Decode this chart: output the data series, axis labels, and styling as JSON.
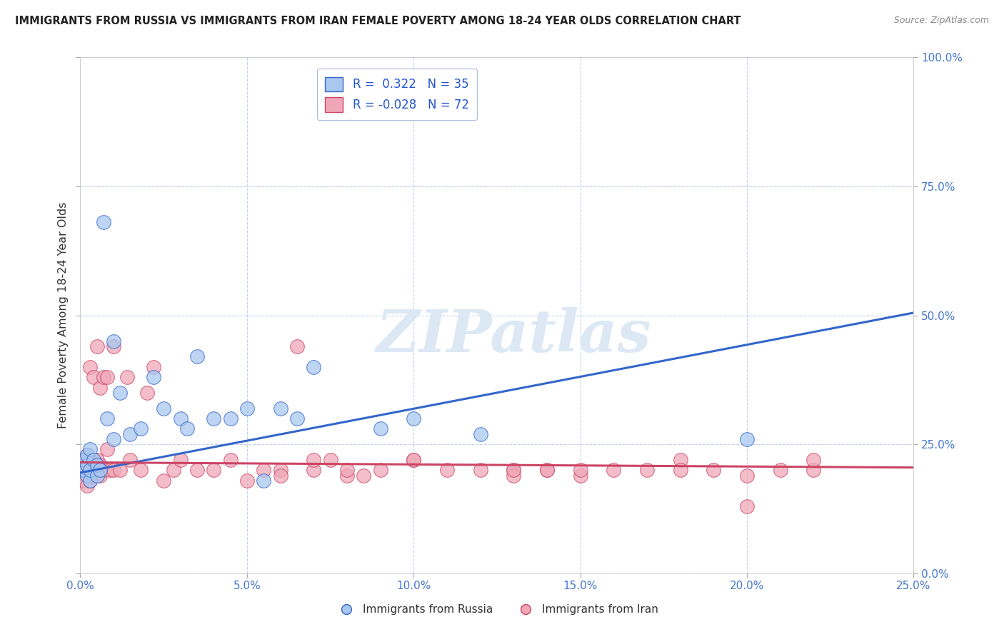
{
  "title": "IMMIGRANTS FROM RUSSIA VS IMMIGRANTS FROM IRAN FEMALE POVERTY AMONG 18-24 YEAR OLDS CORRELATION CHART",
  "source": "Source: ZipAtlas.com",
  "ylabel": "Female Poverty Among 18-24 Year Olds",
  "xlabel": "",
  "xlim": [
    0,
    0.25
  ],
  "ylim": [
    0,
    1.0
  ],
  "xticks": [
    0,
    0.05,
    0.1,
    0.15,
    0.2,
    0.25
  ],
  "yticks": [
    0.0,
    0.25,
    0.5,
    0.75,
    1.0
  ],
  "xtick_labels": [
    "0.0%",
    "5.0%",
    "10.0%",
    "15.0%",
    "20.0%",
    "25.0%"
  ],
  "ytick_labels": [
    "0.0%",
    "25.0%",
    "50.0%",
    "75.0%",
    "100.0%"
  ],
  "russia_color": "#a8c8f0",
  "iran_color": "#f0a8b8",
  "russia_line_color": "#3366cc",
  "iran_line_color": "#cc4466",
  "watermark_color": "#dde8f5",
  "watermark": "ZIPatlas",
  "legend_russia": "Immigrants from Russia",
  "legend_iran": "Immigrants from Iran",
  "R_russia": 0.322,
  "N_russia": 35,
  "R_iran": -0.028,
  "N_iran": 72,
  "russia_x": [
    0.001,
    0.001,
    0.002,
    0.002,
    0.002,
    0.003,
    0.003,
    0.003,
    0.004,
    0.005,
    0.005,
    0.006,
    0.007,
    0.008,
    0.01,
    0.01,
    0.012,
    0.015,
    0.018,
    0.022,
    0.025,
    0.03,
    0.032,
    0.035,
    0.04,
    0.045,
    0.05,
    0.055,
    0.06,
    0.065,
    0.07,
    0.09,
    0.1,
    0.12,
    0.2
  ],
  "russia_y": [
    0.2,
    0.22,
    0.19,
    0.21,
    0.23,
    0.18,
    0.24,
    0.2,
    0.22,
    0.19,
    0.21,
    0.2,
    0.68,
    0.3,
    0.26,
    0.45,
    0.35,
    0.27,
    0.28,
    0.38,
    0.32,
    0.3,
    0.28,
    0.42,
    0.3,
    0.3,
    0.32,
    0.18,
    0.32,
    0.3,
    0.4,
    0.28,
    0.3,
    0.27,
    0.26
  ],
  "iran_x": [
    0.001,
    0.001,
    0.001,
    0.002,
    0.002,
    0.002,
    0.002,
    0.003,
    0.003,
    0.003,
    0.003,
    0.004,
    0.004,
    0.004,
    0.005,
    0.005,
    0.005,
    0.006,
    0.006,
    0.006,
    0.007,
    0.007,
    0.008,
    0.008,
    0.009,
    0.01,
    0.01,
    0.012,
    0.014,
    0.015,
    0.018,
    0.02,
    0.022,
    0.025,
    0.028,
    0.03,
    0.035,
    0.04,
    0.045,
    0.05,
    0.055,
    0.06,
    0.065,
    0.07,
    0.075,
    0.08,
    0.085,
    0.09,
    0.1,
    0.11,
    0.12,
    0.13,
    0.14,
    0.15,
    0.16,
    0.17,
    0.18,
    0.19,
    0.2,
    0.21,
    0.22,
    0.2,
    0.13,
    0.14,
    0.07,
    0.08,
    0.1,
    0.13,
    0.06,
    0.18,
    0.15,
    0.22
  ],
  "iran_y": [
    0.2,
    0.18,
    0.22,
    0.19,
    0.21,
    0.23,
    0.17,
    0.2,
    0.22,
    0.18,
    0.4,
    0.19,
    0.21,
    0.38,
    0.2,
    0.22,
    0.44,
    0.36,
    0.19,
    0.21,
    0.38,
    0.2,
    0.38,
    0.24,
    0.2,
    0.2,
    0.44,
    0.2,
    0.38,
    0.22,
    0.2,
    0.35,
    0.4,
    0.18,
    0.2,
    0.22,
    0.2,
    0.2,
    0.22,
    0.18,
    0.2,
    0.2,
    0.44,
    0.2,
    0.22,
    0.19,
    0.19,
    0.2,
    0.22,
    0.2,
    0.2,
    0.2,
    0.2,
    0.19,
    0.2,
    0.2,
    0.22,
    0.2,
    0.19,
    0.2,
    0.2,
    0.13,
    0.19,
    0.2,
    0.22,
    0.2,
    0.22,
    0.2,
    0.19,
    0.2,
    0.2,
    0.22
  ],
  "russia_trend_x0": 0.0,
  "russia_trend_y0": 0.195,
  "russia_trend_x1": 0.25,
  "russia_trend_y1": 0.505,
  "iran_trend_x0": 0.0,
  "iran_trend_y0": 0.215,
  "iran_trend_x1": 0.25,
  "iran_trend_y1": 0.205
}
